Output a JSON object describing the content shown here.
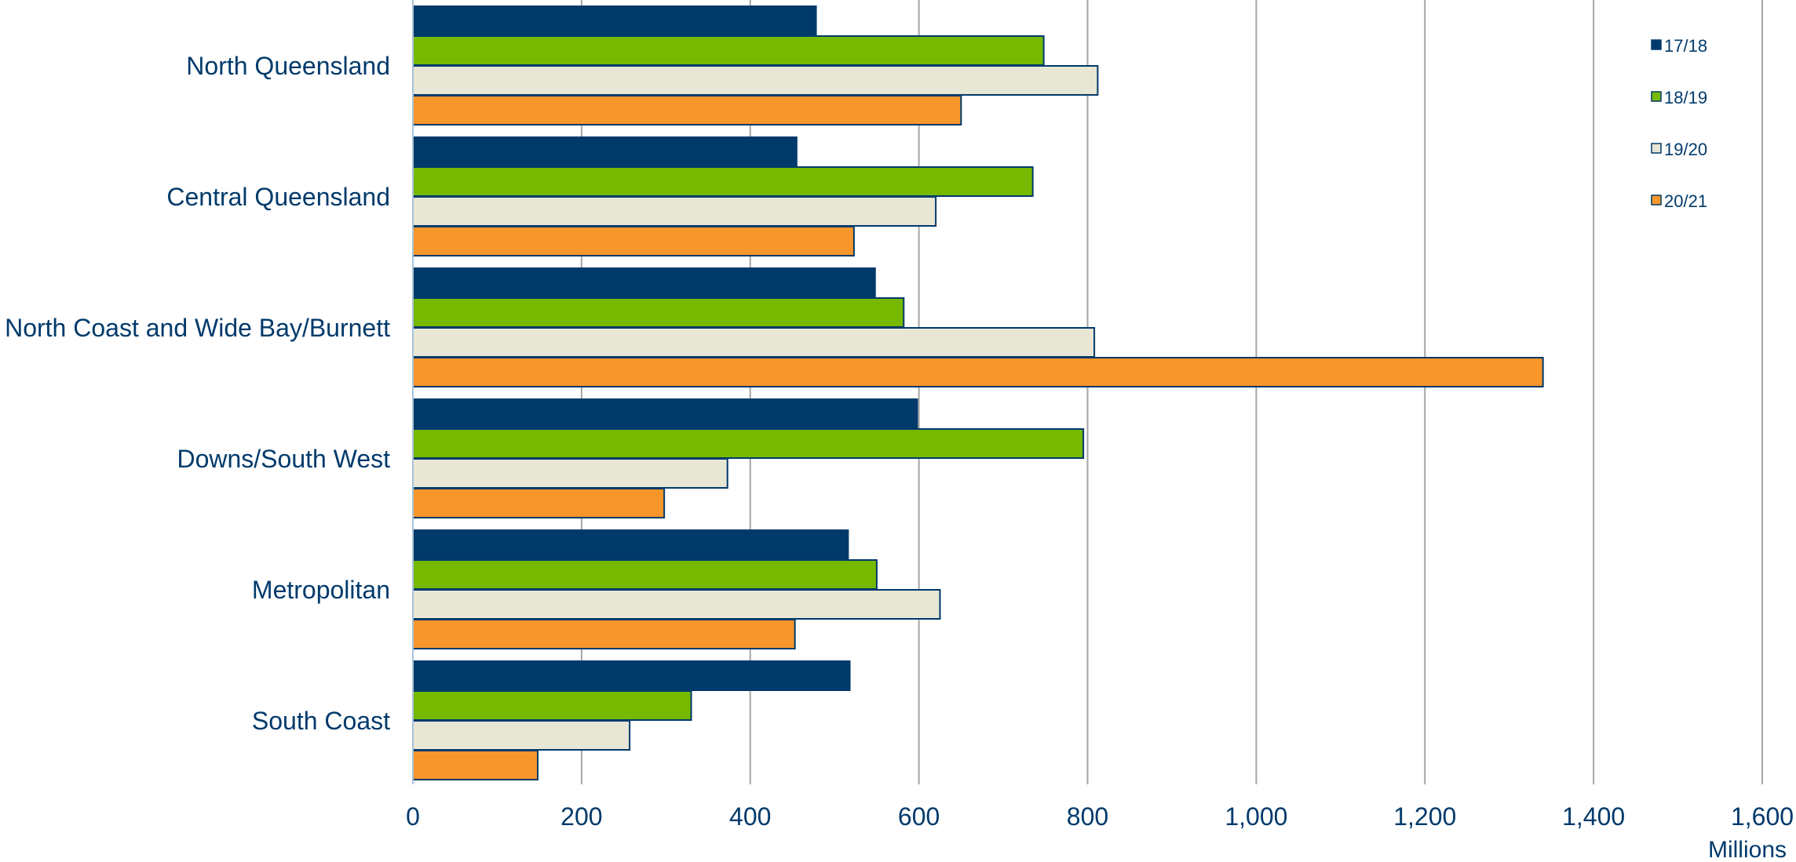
{
  "chart_data": {
    "type": "bar",
    "orientation": "horizontal",
    "categories": [
      "North Queensland",
      "Central Queensland",
      "North Coast and Wide Bay/Burnett",
      "Downs/South West",
      "Metropolitan",
      "South Coast"
    ],
    "series": [
      {
        "name": "17/18",
        "color": "#003a6b",
        "values": [
          478,
          455,
          548,
          598,
          516,
          518
        ]
      },
      {
        "name": "18/19",
        "color": "#76b900",
        "values": [
          748,
          735,
          582,
          795,
          550,
          330
        ]
      },
      {
        "name": "19/20",
        "color": "#e8e6d5",
        "values": [
          812,
          620,
          808,
          373,
          625,
          257
        ]
      },
      {
        "name": "20/21",
        "color": "#f7962b",
        "values": [
          650,
          523,
          1340,
          298,
          453,
          148
        ]
      }
    ],
    "x_ticks": [
      "0",
      "200",
      "400",
      "600",
      "800",
      "1,000",
      "1,200",
      "1,400",
      "1,600"
    ],
    "xlim": [
      0,
      1600
    ],
    "xlabel": "Millions",
    "ylabel": "",
    "title": "",
    "grid": "vertical",
    "legend_position": "top-right"
  }
}
